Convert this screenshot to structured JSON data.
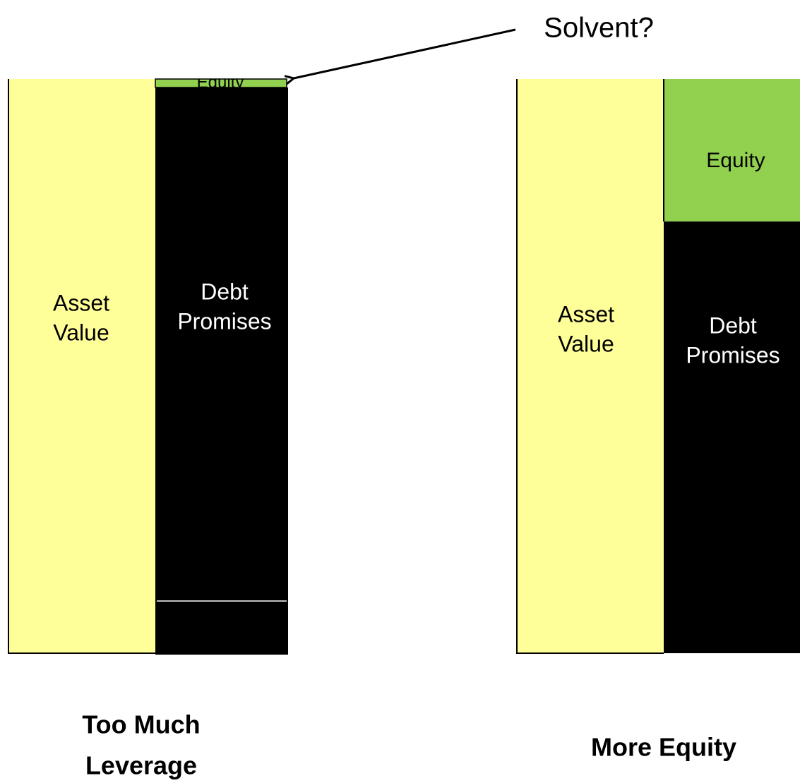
{
  "callout": "Solvent?",
  "panels": [
    {
      "asset_label": [
        "Asset",
        "Value"
      ],
      "debt_label": [
        "Debt",
        "Promises"
      ],
      "equity_label": "Equity",
      "caption": [
        "Too Much",
        "Leverage"
      ]
    },
    {
      "asset_label": [
        "Asset",
        "Value"
      ],
      "debt_label": [
        "Debt",
        "Promises"
      ],
      "equity_label": "Equity",
      "caption": [
        "More Equity"
      ]
    }
  ]
}
